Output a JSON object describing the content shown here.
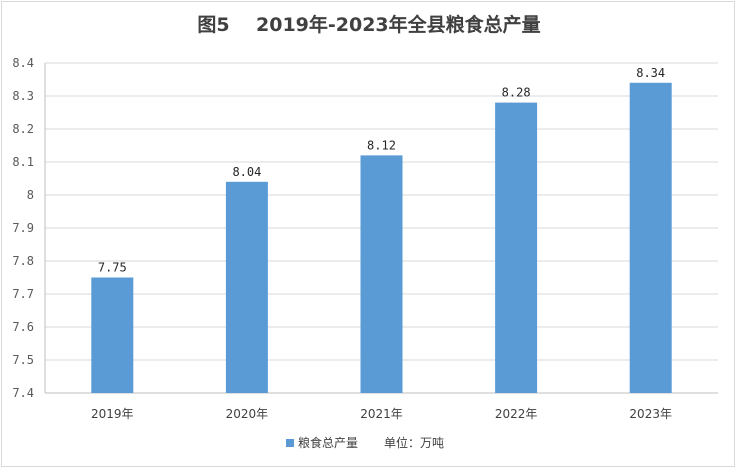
{
  "chart_data": {
    "type": "bar",
    "title": "图5    2019年-2023年全县粮食总产量",
    "categories": [
      "2019年",
      "2020年",
      "2021年",
      "2022年",
      "2023年"
    ],
    "series": [
      {
        "name": "粮食总产量",
        "values": [
          7.75,
          8.04,
          8.12,
          8.28,
          8.34
        ],
        "color": "#5b9bd5"
      }
    ],
    "value_labels": [
      "7.75",
      "8.04",
      "8.12",
      "8.28",
      "8.34"
    ],
    "yticks": [
      "7.4",
      "7.5",
      "7.6",
      "7.7",
      "7.8",
      "7.9",
      "8",
      "8.1",
      "8.2",
      "8.3",
      "8.4"
    ],
    "ylim": [
      7.4,
      8.4
    ],
    "unit_note": "单位：万吨",
    "grid": true,
    "legend_position": "bottom"
  }
}
